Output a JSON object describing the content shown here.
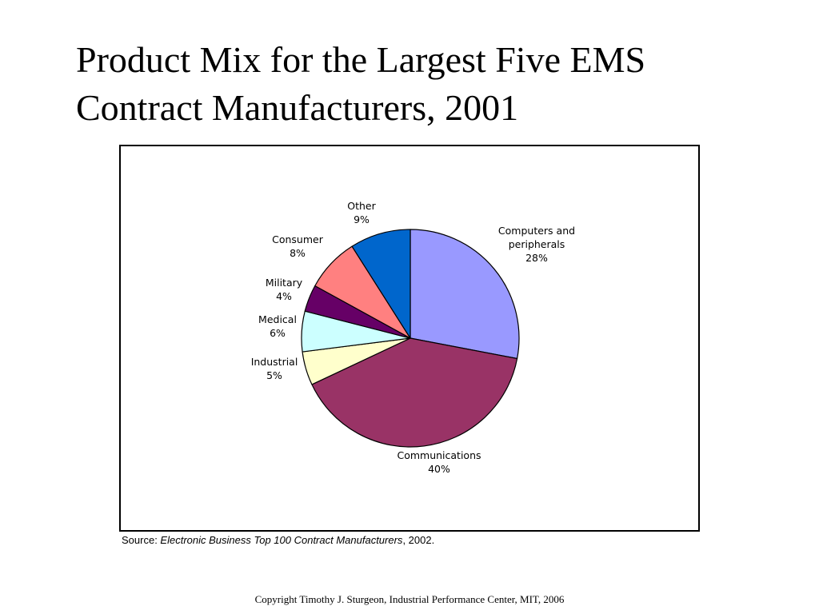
{
  "title": {
    "line1": "Product Mix for the Largest Five EMS",
    "line2": "Contract Manufacturers, 2001"
  },
  "source": {
    "prefix": "Source: ",
    "publication": "Electronic Business Top 100 Contract Manufacturers",
    "suffix": ", 2002."
  },
  "copyright": "Copyright Timothy J.  Sturgeon, Industrial Performance Center, MIT, 2006",
  "chart_data": {
    "type": "pie",
    "start_angle": "12 o'clock",
    "direction": "clockwise",
    "slices": [
      {
        "label": "Computers and peripherals",
        "label_lines": [
          "Computers and",
          "peripherals"
        ],
        "value": 28,
        "value_label": "28%",
        "color": "#9999FF"
      },
      {
        "label": "Communications",
        "label_lines": [
          "Communications"
        ],
        "value": 40,
        "value_label": "40%",
        "color": "#993366"
      },
      {
        "label": "Industrial",
        "label_lines": [
          "Industrial"
        ],
        "value": 5,
        "value_label": "5%",
        "color": "#FFFFCC"
      },
      {
        "label": "Medical",
        "label_lines": [
          "Medical"
        ],
        "value": 6,
        "value_label": "6%",
        "color": "#CCFFFF"
      },
      {
        "label": "Military",
        "label_lines": [
          "Military"
        ],
        "value": 4,
        "value_label": "4%",
        "color": "#660066"
      },
      {
        "label": "Consumer",
        "label_lines": [
          "Consumer"
        ],
        "value": 8,
        "value_label": "8%",
        "color": "#FF8080"
      },
      {
        "label": "Other",
        "label_lines": [
          "Other"
        ],
        "value": 9,
        "value_label": "9%",
        "color": "#0066CC"
      }
    ]
  }
}
